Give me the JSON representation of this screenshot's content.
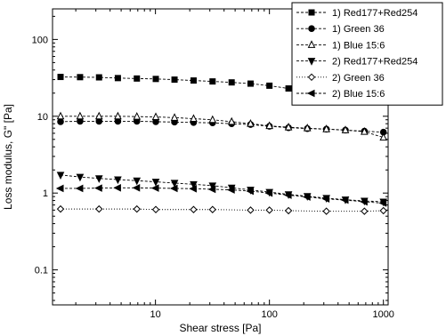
{
  "chart_data": {
    "type": "scatter",
    "title": "",
    "xlabel": "Shear stress [Pa]",
    "ylabel": "Loss modulus, G\" [Pa]",
    "xscale": "log",
    "yscale": "log",
    "xlim": [
      1.25,
      1100
    ],
    "ylim": [
      0.035,
      250
    ],
    "x_ticks": [
      10,
      100,
      1000
    ],
    "x_tick_labels": [
      "10",
      "100",
      "1000"
    ],
    "y_ticks": [
      0.1,
      1,
      10,
      100
    ],
    "y_tick_labels": [
      "0.1",
      "1",
      "10",
      "100"
    ],
    "grid": false,
    "legend_position": "top-right",
    "x": [
      1.47,
      2.18,
      3.2,
      4.68,
      6.87,
      10.07,
      14.7,
      21.6,
      31.7,
      46.6,
      68.3,
      100,
      147,
      215,
      316,
      464,
      681,
      1000
    ],
    "series": [
      {
        "name": "1) Red177+Red254",
        "marker": "square-filled",
        "line": "dash",
        "values": [
          32.5,
          32.3,
          32.1,
          31.4,
          31.0,
          30.6,
          30.0,
          29.2,
          28.4,
          27.6,
          26.6,
          25.0,
          23.0,
          21.4,
          19.8,
          18.4,
          17.2,
          15.3
        ]
      },
      {
        "name": "1) Green 36",
        "marker": "circle-filled",
        "line": "dash",
        "values": [
          8.5,
          8.6,
          8.6,
          8.6,
          8.6,
          8.5,
          8.4,
          8.3,
          8.2,
          8.0,
          7.8,
          7.4,
          7.1,
          6.9,
          6.8,
          6.6,
          6.4,
          6.2
        ]
      },
      {
        "name": "1) Blue 15:6",
        "marker": "triangle-up-open",
        "line": "dash",
        "values": [
          10.0,
          10.0,
          10.0,
          10.0,
          9.9,
          9.8,
          9.6,
          9.3,
          9.0,
          8.5,
          8.0,
          7.5,
          7.2,
          7.0,
          6.8,
          6.6,
          6.3,
          5.3
        ]
      },
      {
        "name": "2) Red177+Red254",
        "marker": "triangle-down-filled",
        "line": "dash",
        "values": [
          1.72,
          1.62,
          1.55,
          1.5,
          1.45,
          1.4,
          1.35,
          1.3,
          1.25,
          1.17,
          1.1,
          1.03,
          0.96,
          0.91,
          0.86,
          0.82,
          0.79,
          0.77
        ]
      },
      {
        "name": "2) Green 36",
        "marker": "diamond-open",
        "line": "dot",
        "values": [
          0.62,
          null,
          0.62,
          null,
          0.62,
          0.61,
          null,
          0.61,
          0.61,
          null,
          0.6,
          0.6,
          0.59,
          null,
          0.58,
          null,
          0.58,
          0.59
        ]
      },
      {
        "name": "2) Blue 15:6",
        "marker": "triangle-left-filled",
        "line": "dash",
        "values": [
          1.15,
          1.15,
          1.16,
          1.17,
          1.17,
          1.16,
          1.15,
          1.14,
          1.12,
          1.1,
          1.06,
          1.0,
          0.94,
          0.89,
          0.84,
          0.81,
          0.77,
          0.74
        ]
      }
    ]
  }
}
